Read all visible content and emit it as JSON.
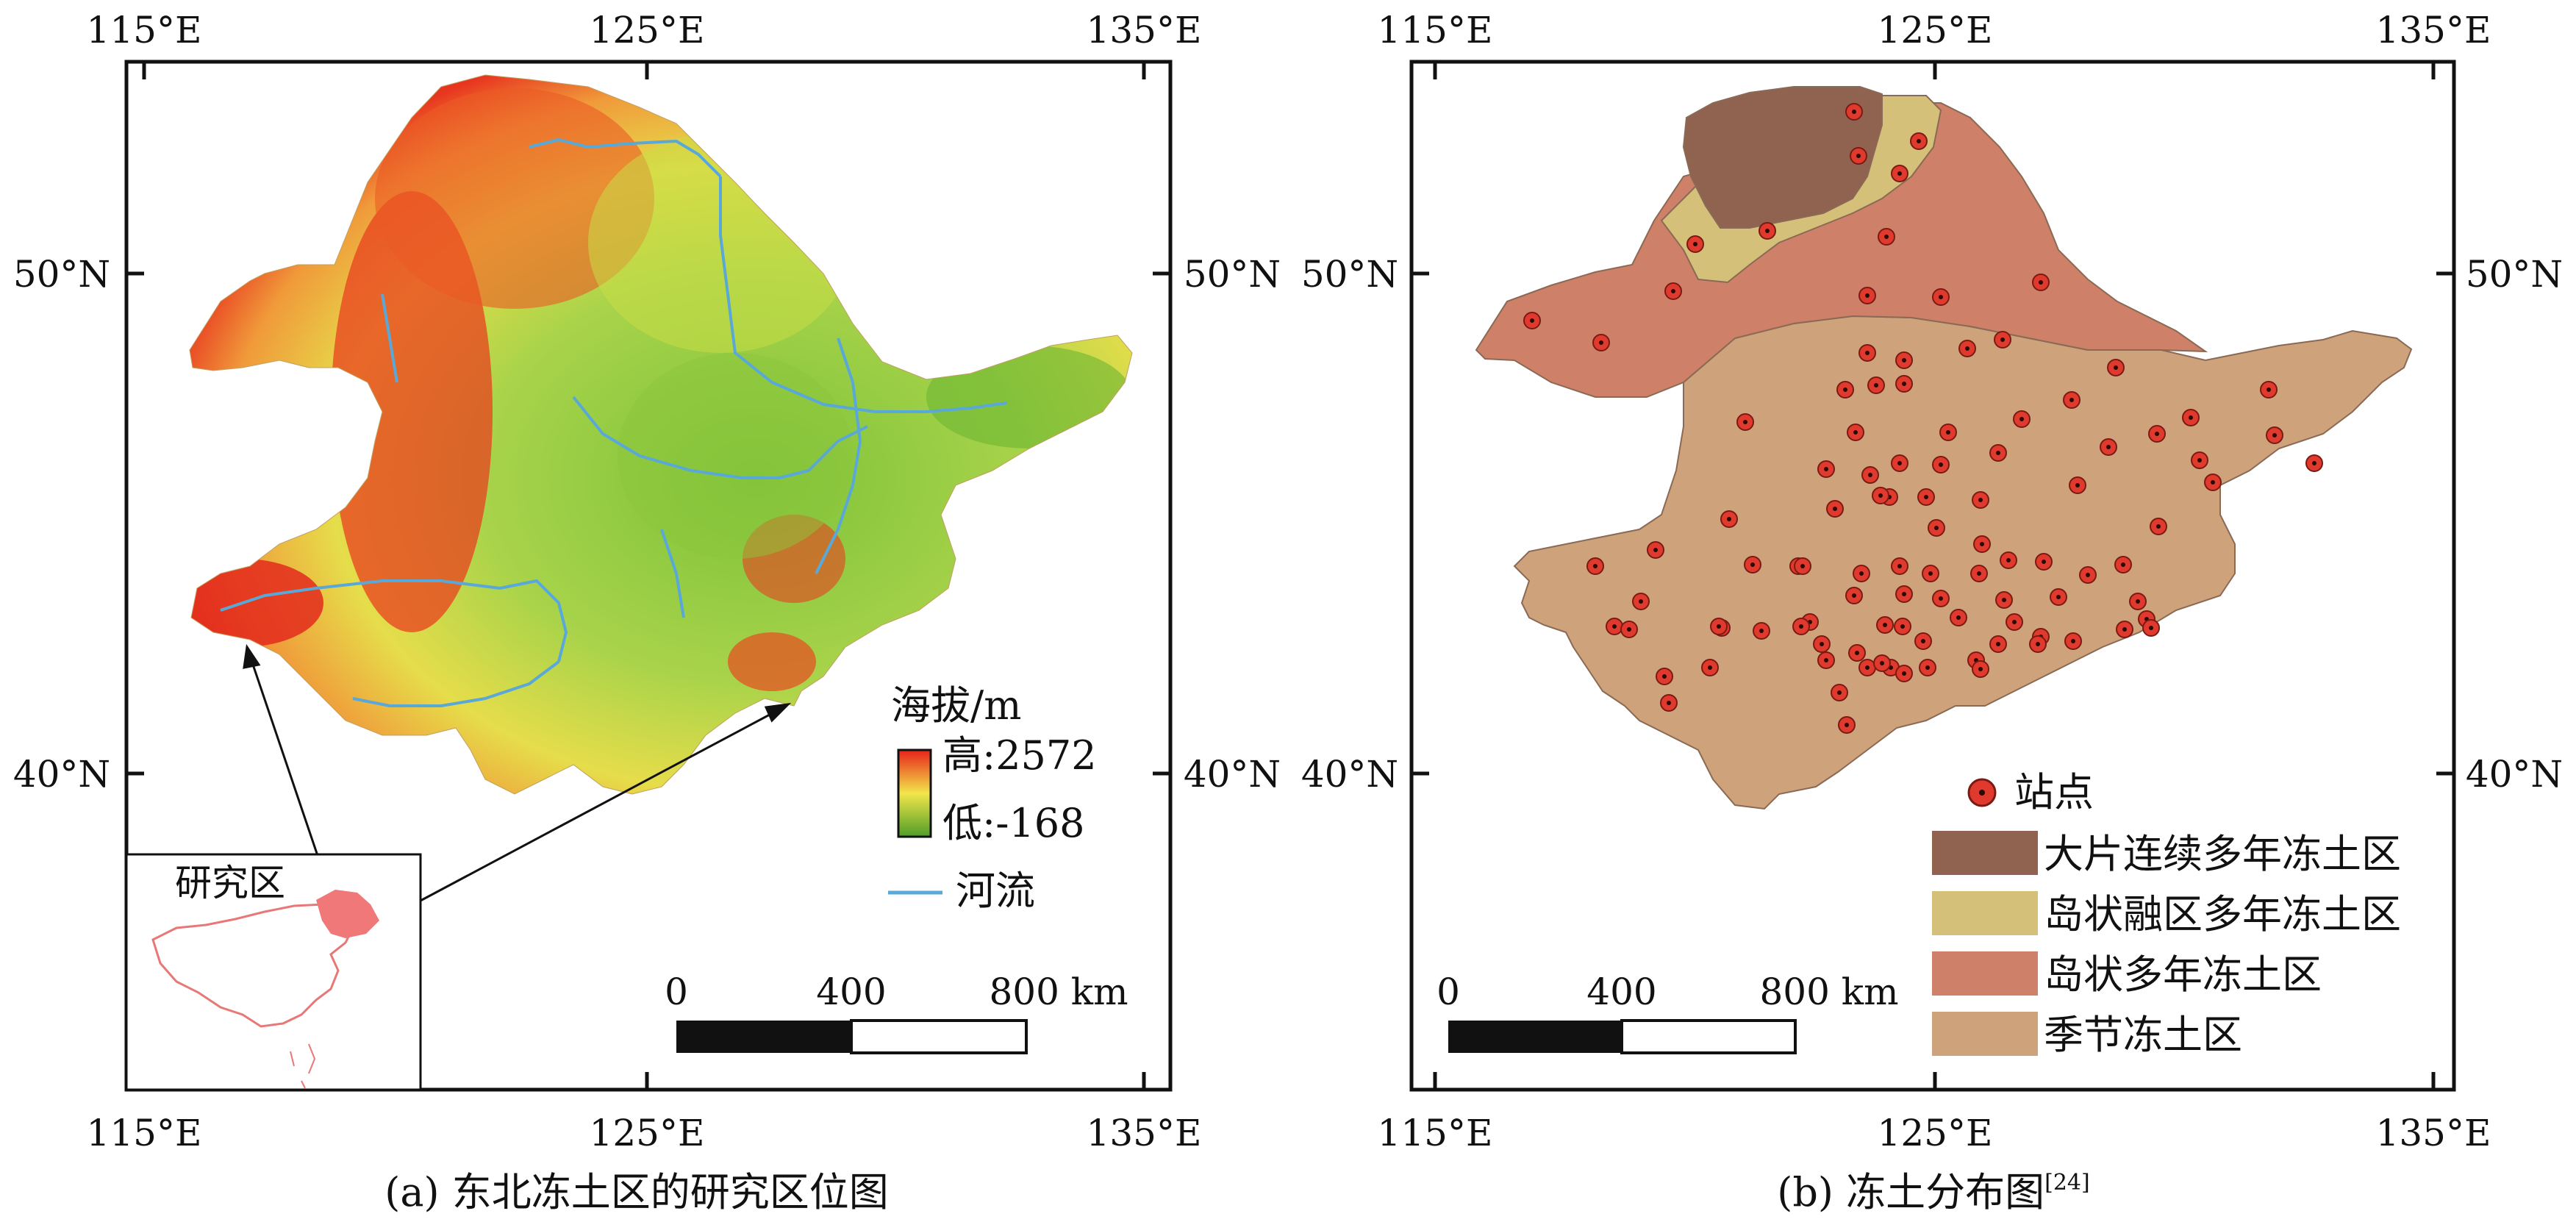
{
  "panel_a": {
    "lon_labels": [
      "115°E",
      "125°E",
      "135°E"
    ],
    "lat_labels": [
      "50°N",
      "40°N"
    ],
    "caption": "(a) 东北冻土区的研究区位图",
    "legend_title": "海拔/m",
    "legend_high": "高:2572",
    "legend_low": "低:-168",
    "river_label": "河流",
    "inset_label": "研究区",
    "scale_labels": [
      "0",
      "400",
      "800 km"
    ],
    "elevation_range_m": [
      -168,
      2572
    ],
    "colors": {
      "high": "#e8221a",
      "mid": "#f2e64a",
      "low": "#5aab2e",
      "river": "#5aa8d8"
    }
  },
  "panel_b": {
    "lon_labels": [
      "115°E",
      "125°E",
      "135°E"
    ],
    "lat_labels": [
      "50°N",
      "40°N"
    ],
    "caption": "(b) 冻土分布图",
    "caption_ref": "[24]",
    "scale_labels": [
      "0",
      "400",
      "800 km"
    ],
    "legend": [
      {
        "label": "站点",
        "color": "#e03a2e",
        "kind": "station"
      },
      {
        "label": "大片连续多年冻土区",
        "color": "#8f6350",
        "kind": "zone"
      },
      {
        "label": "岛状融区多年冻土区",
        "color": "#d5c07a",
        "kind": "zone"
      },
      {
        "label": "岛状多年冻土区",
        "color": "#ce8068",
        "kind": "zone"
      },
      {
        "label": "季节冻土区",
        "color": "#cea27a",
        "kind": "zone"
      }
    ]
  }
}
